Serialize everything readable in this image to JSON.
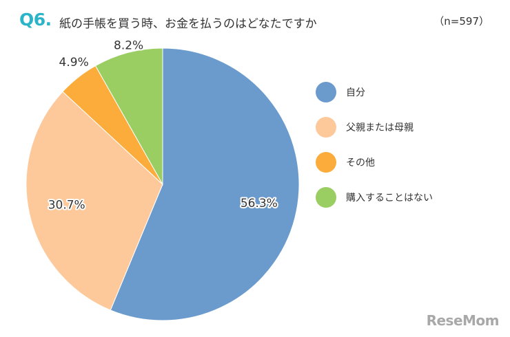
{
  "header": {
    "q_number": "Q6.",
    "question": "紙の手帳を買う時、お金を払うのはどなたですか",
    "n_count": "（n=597）"
  },
  "chart_data": {
    "type": "pie",
    "title": "紙の手帳を買う時、お金を払うのはどなたですか",
    "categories": [
      "自分",
      "父親または母親",
      "その他",
      "購入することはない"
    ],
    "values": [
      56.3,
      30.7,
      4.9,
      8.2
    ],
    "labels": [
      "56.3%",
      "30.7%",
      "4.9%",
      "8.2%"
    ],
    "colors": [
      "#6b9bcc",
      "#fdc99a",
      "#fbac3a",
      "#9acd62"
    ],
    "start": "12 o'clock",
    "direction": "clockwise",
    "legend": "right"
  },
  "watermark": "ReseMom"
}
